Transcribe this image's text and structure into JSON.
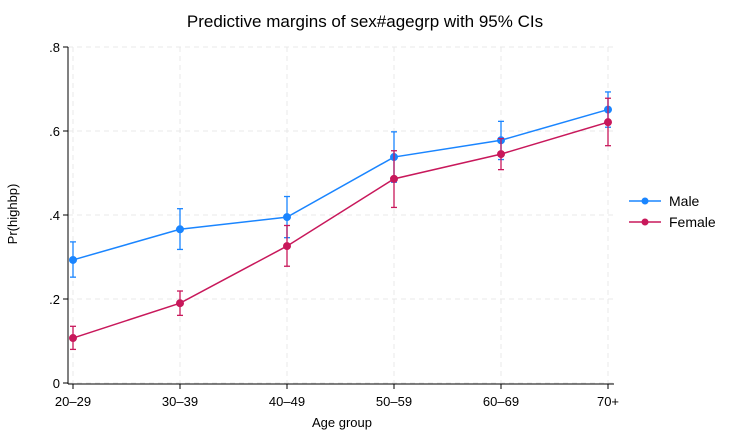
{
  "chart_data": {
    "type": "line",
    "title": "Predictive margins of sex#agegrp with 95% CIs",
    "xlabel": "Age group",
    "ylabel": "Pr(highbp)",
    "categories": [
      "20–29",
      "30–39",
      "40–49",
      "50–59",
      "60–69",
      "70+"
    ],
    "ylim": [
      0,
      0.8
    ],
    "yticks": [
      0,
      0.2,
      0.4,
      0.6,
      0.8
    ],
    "ytick_labels": [
      "0",
      ".2",
      ".4",
      ".6",
      ".8"
    ],
    "grid": true,
    "legend_position": "right",
    "series": [
      {
        "name": "Male",
        "color": "#1a85ff",
        "values": [
          0.293,
          0.366,
          0.395,
          0.538,
          0.578,
          0.651
        ],
        "ci_low": [
          0.252,
          0.318,
          0.346,
          0.478,
          0.532,
          0.609
        ],
        "ci_high": [
          0.336,
          0.415,
          0.444,
          0.598,
          0.623,
          0.693
        ]
      },
      {
        "name": "Female",
        "color": "#c8185b",
        "values": [
          0.107,
          0.19,
          0.326,
          0.486,
          0.545,
          0.621
        ],
        "ci_low": [
          0.08,
          0.161,
          0.278,
          0.418,
          0.508,
          0.565
        ],
        "ci_high": [
          0.135,
          0.219,
          0.375,
          0.553,
          0.582,
          0.678
        ]
      }
    ]
  }
}
